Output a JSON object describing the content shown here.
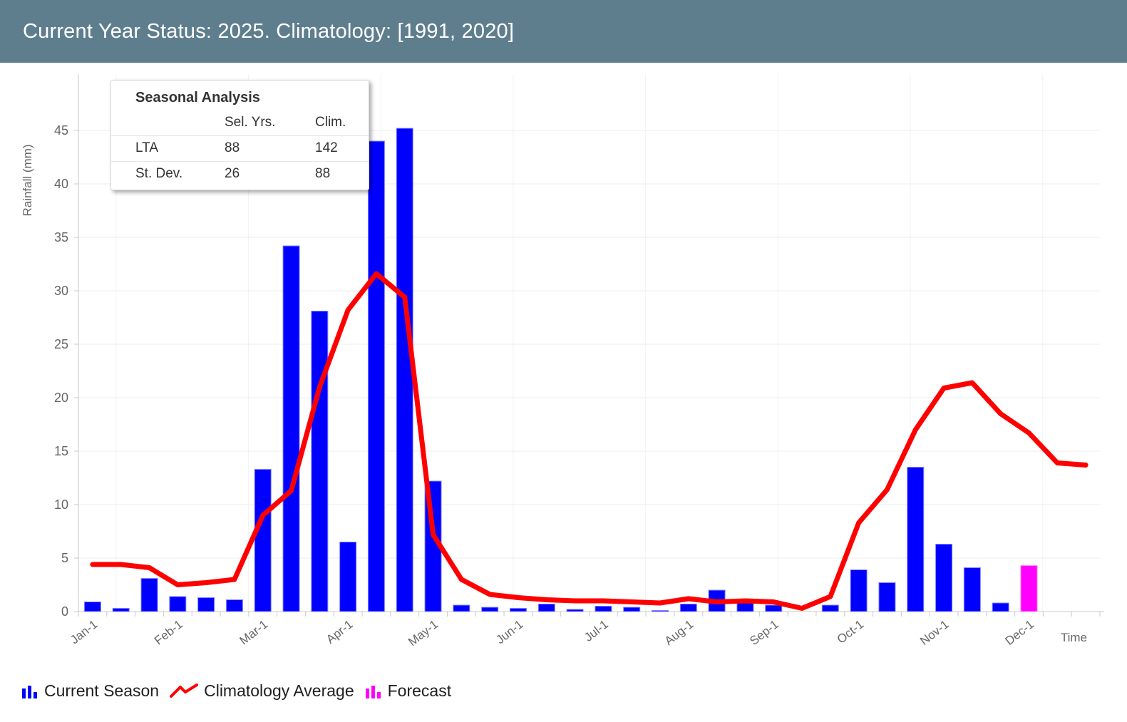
{
  "header": {
    "title": "Current Year Status: 2025. Climatology: [1991, 2020]"
  },
  "tooltip": {
    "title": "Seasonal Analysis",
    "col_headers": [
      "Sel. Yrs.",
      "Clim."
    ],
    "rows": [
      {
        "label": "LTA",
        "sel_yrs": "88",
        "clim": "142"
      },
      {
        "label": "St. Dev.",
        "sel_yrs": "26",
        "clim": "88"
      }
    ]
  },
  "legend": {
    "items": [
      {
        "label": "Current Season",
        "color": "#0000ff",
        "type": "bars"
      },
      {
        "label": "Climatology Average",
        "color": "#ff0000",
        "type": "line"
      },
      {
        "label": "Forecast",
        "color": "#ff00ff",
        "type": "bars"
      }
    ]
  },
  "axes": {
    "y_label": "Rainfall (mm)",
    "x_label": "Time",
    "y_ticks": [
      0,
      5,
      10,
      15,
      20,
      25,
      30,
      35,
      40,
      45
    ]
  },
  "chart_data": {
    "type": "bar",
    "title": "Current Year Status: 2025. Climatology: [1991, 2020]",
    "xlabel": "Time",
    "ylabel": "Rainfall (mm)",
    "ylim": [
      0,
      49
    ],
    "grid": true,
    "legend_position": "bottom-left",
    "categories": [
      "Jan-1",
      "Jan-11",
      "Jan-21",
      "Feb-1",
      "Feb-11",
      "Feb-21",
      "Mar-1",
      "Mar-11",
      "Mar-21",
      "Apr-1",
      "Apr-11",
      "Apr-21",
      "May-1",
      "May-11",
      "May-21",
      "Jun-1",
      "Jun-11",
      "Jun-21",
      "Jul-1",
      "Jul-11",
      "Jul-21",
      "Aug-1",
      "Aug-11",
      "Aug-21",
      "Sep-1",
      "Sep-11",
      "Sep-21",
      "Oct-1",
      "Oct-11",
      "Oct-21",
      "Nov-1",
      "Nov-11",
      "Nov-21",
      "Dec-1",
      "Dec-11",
      "Dec-21"
    ],
    "month_labels": [
      "Jan-1",
      "Feb-1",
      "Mar-1",
      "Apr-1",
      "May-1",
      "Jun-1",
      "Jul-1",
      "Aug-1",
      "Sep-1",
      "Oct-1",
      "Nov-1",
      "Dec-1"
    ],
    "series": [
      {
        "name": "Current Season",
        "type": "bar",
        "color": "#0000ff",
        "edge": "#8585ff",
        "values": [
          0.9,
          0.3,
          3.1,
          1.4,
          1.3,
          1.1,
          13.3,
          34.2,
          28.1,
          6.5,
          44.0,
          45.2,
          12.2,
          0.6,
          0.4,
          0.3,
          0.7,
          0.2,
          0.5,
          0.4,
          0.1,
          0.7,
          2.0,
          0.9,
          0.6,
          0,
          0.6,
          3.9,
          2.7,
          13.5,
          6.3,
          4.1,
          0.8,
          null,
          null,
          null
        ]
      },
      {
        "name": "Climatology Average",
        "type": "line",
        "color": "#ff0000",
        "values": [
          4.4,
          4.4,
          4.1,
          2.5,
          2.7,
          3.0,
          9.0,
          11.3,
          21.0,
          28.2,
          31.6,
          29.4,
          7.2,
          3.0,
          1.6,
          1.3,
          1.1,
          1.0,
          1.0,
          0.9,
          0.8,
          1.2,
          0.9,
          1.0,
          0.9,
          0.3,
          1.4,
          8.3,
          11.4,
          17.0,
          20.9,
          21.4,
          18.5,
          16.7,
          13.9,
          13.7
        ]
      },
      {
        "name": "Forecast",
        "type": "bar",
        "color": "#ff00ff",
        "edge": "#ff85ff",
        "values": [
          null,
          null,
          null,
          null,
          null,
          null,
          null,
          null,
          null,
          null,
          null,
          null,
          null,
          null,
          null,
          null,
          null,
          null,
          null,
          null,
          null,
          null,
          null,
          null,
          null,
          null,
          null,
          null,
          null,
          null,
          null,
          null,
          null,
          4.3,
          null,
          null
        ]
      }
    ]
  }
}
